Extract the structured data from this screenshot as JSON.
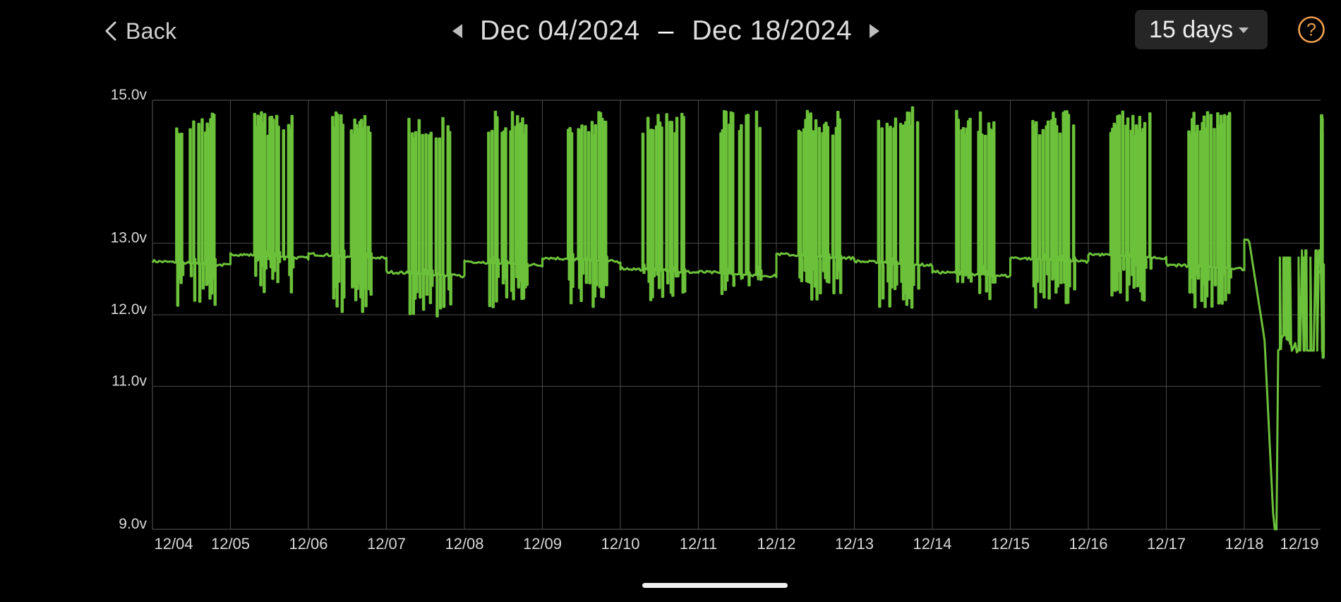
{
  "header": {
    "back_label": "Back",
    "date_start": "Dec 04/2024",
    "date_separator": "–",
    "date_end": "Dec 18/2024",
    "range_selected": "15 days",
    "help_symbol": "?"
  },
  "icons": {
    "back": "chevron-left-icon",
    "prev": "triangle-left-icon",
    "next": "triangle-right-icon",
    "dropdown": "caret-down-icon",
    "help": "question-circle-icon"
  },
  "colors": {
    "background": "#000000",
    "line": "#6cc13a",
    "grid": "#4a4a4a",
    "help_accent": "#f0a050",
    "dropdown_bg": "#262626"
  },
  "chart_data": {
    "type": "line",
    "title": "",
    "xlabel": "",
    "ylabel": "",
    "ylim": [
      9.0,
      15.0
    ],
    "xlim_days": [
      "12/04",
      "12/19"
    ],
    "grid": true,
    "legend": "none",
    "y_ticks": [
      {
        "value": 9.0,
        "label": "9.0v"
      },
      {
        "value": 11.0,
        "label": "11.0v"
      },
      {
        "value": 12.0,
        "label": "12.0v"
      },
      {
        "value": 13.0,
        "label": "13.0v"
      },
      {
        "value": 15.0,
        "label": "15.0v"
      }
    ],
    "x_ticks": [
      "12/04",
      "12/05",
      "12/06",
      "12/07",
      "12/08",
      "12/09",
      "12/10",
      "12/11",
      "12/12",
      "12/13",
      "12/14",
      "12/15",
      "12/16",
      "12/17",
      "12/18",
      "12/19"
    ],
    "series": [
      {
        "values_by_day": [
          {
            "day": "12/04",
            "baseline": 12.75,
            "high": 14.85,
            "low": 12.1
          },
          {
            "day": "12/05",
            "baseline": 12.85,
            "high": 14.85,
            "low": 12.3
          },
          {
            "day": "12/06",
            "baseline": 12.85,
            "high": 14.85,
            "low": 12.0
          },
          {
            "day": "12/07",
            "baseline": 12.6,
            "high": 14.8,
            "low": 11.95
          },
          {
            "day": "12/08",
            "baseline": 12.75,
            "high": 14.85,
            "low": 12.1
          },
          {
            "day": "12/09",
            "baseline": 12.8,
            "high": 14.85,
            "low": 12.1
          },
          {
            "day": "12/10",
            "baseline": 12.65,
            "high": 14.85,
            "low": 12.2
          },
          {
            "day": "12/11",
            "baseline": 12.6,
            "high": 14.85,
            "low": 12.2
          },
          {
            "day": "12/12",
            "baseline": 12.85,
            "high": 14.85,
            "low": 12.2
          },
          {
            "day": "12/13",
            "baseline": 12.75,
            "high": 14.9,
            "low": 12.05
          },
          {
            "day": "12/14",
            "baseline": 12.6,
            "high": 14.85,
            "low": 12.2
          },
          {
            "day": "12/15",
            "baseline": 12.8,
            "high": 14.85,
            "low": 12.1
          },
          {
            "day": "12/16",
            "baseline": 12.85,
            "high": 14.85,
            "low": 12.2
          },
          {
            "day": "12/17",
            "baseline": 12.7,
            "high": 14.85,
            "low": 12.1
          },
          {
            "day": "12/18",
            "baseline": 11.6,
            "high": 14.8,
            "low": 9.0
          },
          {
            "day": "12/19",
            "baseline": 12.65,
            "high": 14.85,
            "low": 11.4
          }
        ]
      }
    ]
  }
}
